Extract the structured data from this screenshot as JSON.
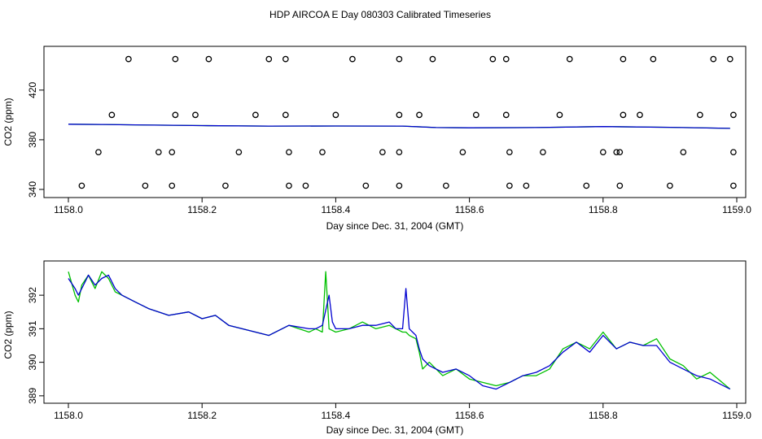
{
  "title": "HDP AIRCOA E  Day 080303  Calibrated Timeseries",
  "colors": {
    "green": "#00c000",
    "blue": "#0000d0",
    "axis": "#000000"
  },
  "chart_data": [
    {
      "type": "line+scatter",
      "xlabel": "Day since Dec. 31, 2004 (GMT)",
      "ylabel": "CO2 (ppm)",
      "xlim": [
        1158.0,
        1159.0
      ],
      "ylim": [
        340,
        450
      ],
      "xticks": [
        "1158.0",
        "1158.2",
        "1158.4",
        "1158.6",
        "1158.8",
        "1159.0"
      ],
      "xtick_values": [
        1158.0,
        1158.2,
        1158.4,
        1158.6,
        1158.8,
        1159.0
      ],
      "yticks": [
        "340",
        "380",
        "420"
      ],
      "ytick_values": [
        340,
        380,
        420
      ],
      "series": [
        {
          "color": "green",
          "x": [
            1158.0,
            1158.05,
            1158.1,
            1158.2,
            1158.3,
            1158.4,
            1158.5,
            1158.55,
            1158.6,
            1158.7,
            1158.8,
            1158.9,
            1158.99
          ],
          "y": [
            392.5,
            392.3,
            392.0,
            391.4,
            391.0,
            391.1,
            391.0,
            389.8,
            389.6,
            389.8,
            390.6,
            390.0,
            389.2
          ]
        },
        {
          "color": "blue",
          "x": [
            1158.0,
            1158.05,
            1158.1,
            1158.2,
            1158.3,
            1158.4,
            1158.5,
            1158.55,
            1158.6,
            1158.7,
            1158.8,
            1158.9,
            1158.99
          ],
          "y": [
            392.5,
            392.3,
            392.0,
            391.4,
            391.0,
            391.1,
            391.0,
            389.8,
            389.6,
            389.8,
            390.6,
            390.0,
            389.2
          ]
        }
      ],
      "markers": {
        "row1_y": 445,
        "row1_x": [
          1158.09,
          1158.16,
          1158.21,
          1158.3,
          1158.325,
          1158.425,
          1158.495,
          1158.545,
          1158.635,
          1158.655,
          1158.75,
          1158.83,
          1158.875,
          1158.965,
          1158.99
        ],
        "row2_y": 400,
        "row2_x": [
          1158.065,
          1158.16,
          1158.19,
          1158.28,
          1158.325,
          1158.4,
          1158.495,
          1158.525,
          1158.61,
          1158.655,
          1158.735,
          1158.83,
          1158.855,
          1158.945,
          1158.995
        ],
        "row3_y": 370,
        "row3_x": [
          1158.045,
          1158.135,
          1158.155,
          1158.255,
          1158.33,
          1158.38,
          1158.47,
          1158.495,
          1158.59,
          1158.66,
          1158.71,
          1158.8,
          1158.82,
          1158.825,
          1158.92,
          1158.995
        ],
        "row4_y": 343,
        "row4_x": [
          1158.02,
          1158.115,
          1158.155,
          1158.235,
          1158.33,
          1158.355,
          1158.445,
          1158.495,
          1158.565,
          1158.66,
          1158.685,
          1158.775,
          1158.825,
          1158.9,
          1158.995
        ]
      }
    },
    {
      "type": "line",
      "xlabel": "Day since Dec. 31, 2004 (GMT)",
      "ylabel": "CO2 (ppm)",
      "xlim": [
        1158.0,
        1159.0
      ],
      "ylim": [
        388.9,
        392.9
      ],
      "xticks": [
        "1158.0",
        "1158.2",
        "1158.4",
        "1158.6",
        "1158.8",
        "1159.0"
      ],
      "xtick_values": [
        1158.0,
        1158.2,
        1158.4,
        1158.6,
        1158.8,
        1159.0
      ],
      "yticks": [
        "389",
        "390",
        "391",
        "392"
      ],
      "ytick_values": [
        389,
        390,
        391,
        392
      ],
      "series": [
        {
          "color": "green",
          "x": [
            1158.0,
            1158.01,
            1158.015,
            1158.02,
            1158.03,
            1158.04,
            1158.05,
            1158.06,
            1158.07,
            1158.08,
            1158.1,
            1158.12,
            1158.15,
            1158.18,
            1158.2,
            1158.22,
            1158.24,
            1158.26,
            1158.28,
            1158.3,
            1158.33,
            1158.36,
            1158.37,
            1158.38,
            1158.385,
            1158.39,
            1158.4,
            1158.42,
            1158.44,
            1158.46,
            1158.48,
            1158.49,
            1158.5,
            1158.505,
            1158.51,
            1158.52,
            1158.525,
            1158.53,
            1158.54,
            1158.56,
            1158.58,
            1158.6,
            1158.62,
            1158.64,
            1158.66,
            1158.68,
            1158.7,
            1158.72,
            1158.74,
            1158.76,
            1158.78,
            1158.8,
            1158.82,
            1158.84,
            1158.86,
            1158.88,
            1158.9,
            1158.92,
            1158.94,
            1158.96,
            1158.99
          ],
          "y": [
            392.7,
            392.0,
            391.8,
            392.3,
            392.6,
            392.2,
            392.7,
            392.5,
            392.1,
            392.0,
            391.8,
            391.6,
            391.4,
            391.5,
            391.3,
            391.4,
            391.1,
            391.0,
            390.9,
            390.8,
            391.1,
            390.9,
            391.0,
            390.9,
            392.7,
            391.0,
            390.9,
            391.0,
            391.2,
            391.0,
            391.1,
            391.0,
            390.9,
            390.9,
            390.8,
            390.7,
            390.3,
            389.8,
            390.0,
            389.6,
            389.8,
            389.5,
            389.4,
            389.3,
            389.4,
            389.6,
            389.6,
            389.8,
            390.4,
            390.6,
            390.4,
            390.9,
            390.4,
            390.6,
            390.5,
            390.7,
            390.1,
            389.9,
            389.5,
            389.7,
            389.2
          ]
        },
        {
          "color": "blue",
          "x": [
            1158.0,
            1158.01,
            1158.015,
            1158.02,
            1158.03,
            1158.04,
            1158.05,
            1158.06,
            1158.07,
            1158.08,
            1158.1,
            1158.12,
            1158.15,
            1158.18,
            1158.2,
            1158.22,
            1158.24,
            1158.26,
            1158.28,
            1158.3,
            1158.33,
            1158.36,
            1158.37,
            1158.38,
            1158.39,
            1158.395,
            1158.4,
            1158.42,
            1158.44,
            1158.46,
            1158.48,
            1158.49,
            1158.5,
            1158.505,
            1158.51,
            1158.52,
            1158.525,
            1158.53,
            1158.54,
            1158.56,
            1158.58,
            1158.6,
            1158.62,
            1158.64,
            1158.66,
            1158.68,
            1158.7,
            1158.72,
            1158.74,
            1158.76,
            1158.78,
            1158.8,
            1158.82,
            1158.84,
            1158.86,
            1158.88,
            1158.9,
            1158.92,
            1158.94,
            1158.96,
            1158.99
          ],
          "y": [
            392.5,
            392.2,
            392.0,
            392.2,
            392.6,
            392.3,
            392.5,
            392.6,
            392.2,
            392.0,
            391.8,
            391.6,
            391.4,
            391.5,
            391.3,
            391.4,
            391.1,
            391.0,
            390.9,
            390.8,
            391.1,
            391.0,
            391.0,
            391.1,
            392.0,
            391.2,
            391.0,
            391.0,
            391.1,
            391.1,
            391.2,
            391.0,
            391.0,
            392.2,
            391.0,
            390.8,
            390.4,
            390.1,
            389.9,
            389.7,
            389.8,
            389.6,
            389.3,
            389.2,
            389.4,
            389.6,
            389.7,
            389.9,
            390.3,
            390.6,
            390.3,
            390.8,
            390.4,
            390.6,
            390.5,
            390.5,
            390.0,
            389.8,
            389.6,
            389.5,
            389.2
          ]
        }
      ]
    }
  ]
}
